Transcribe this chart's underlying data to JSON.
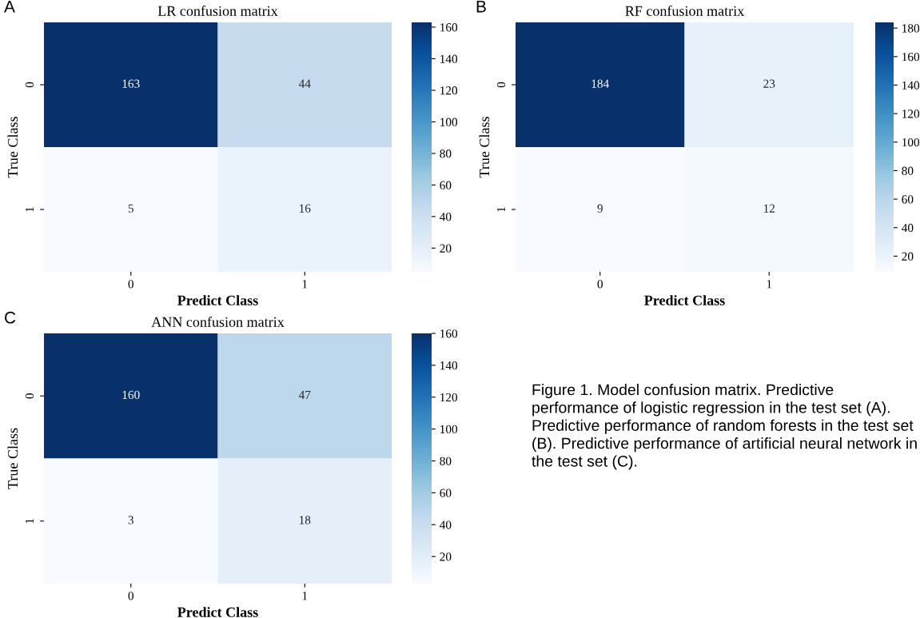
{
  "chart_data": [
    {
      "type": "heatmap",
      "title": "LR confusion matrix",
      "xlabel": "Predict Class",
      "ylabel": "True Class",
      "categories": [
        "0",
        "1"
      ],
      "y_categories": [
        "0",
        "1"
      ],
      "cells": [
        [
          163,
          44
        ],
        [
          5,
          16
        ]
      ],
      "clim": [
        5,
        163
      ],
      "cticks": [
        20,
        40,
        60,
        80,
        100,
        120,
        140,
        160
      ],
      "data_labels": true,
      "annotations": [
        "A"
      ]
    },
    {
      "type": "heatmap",
      "title": "RF confusion matrix",
      "xlabel": "Predict Class",
      "ylabel": "True Class",
      "categories": [
        "0",
        "1"
      ],
      "y_categories": [
        "0",
        "1"
      ],
      "cells": [
        [
          184,
          23
        ],
        [
          9,
          12
        ]
      ],
      "clim": [
        9,
        184
      ],
      "cticks": [
        20,
        40,
        60,
        80,
        100,
        120,
        140,
        160,
        180
      ],
      "data_labels": true,
      "annotations": [
        "B"
      ]
    },
    {
      "type": "heatmap",
      "title": "ANN confusion matrix",
      "xlabel": "Predict Class",
      "ylabel": "True Class",
      "categories": [
        "0",
        "1"
      ],
      "y_categories": [
        "0",
        "1"
      ],
      "cells": [
        [
          160,
          47
        ],
        [
          3,
          18
        ]
      ],
      "clim": [
        3,
        160
      ],
      "cticks": [
        20,
        40,
        60,
        80,
        100,
        120,
        140,
        160
      ],
      "data_labels": true,
      "annotations": [
        "C",
        "Figure 1. Model confusion matrix. Predictive performance of logistic regression in the test set (A). Predictive performance of random forests in the test set (B). Predictive performance of artificial neural network in the test set (C)."
      ]
    }
  ]
}
